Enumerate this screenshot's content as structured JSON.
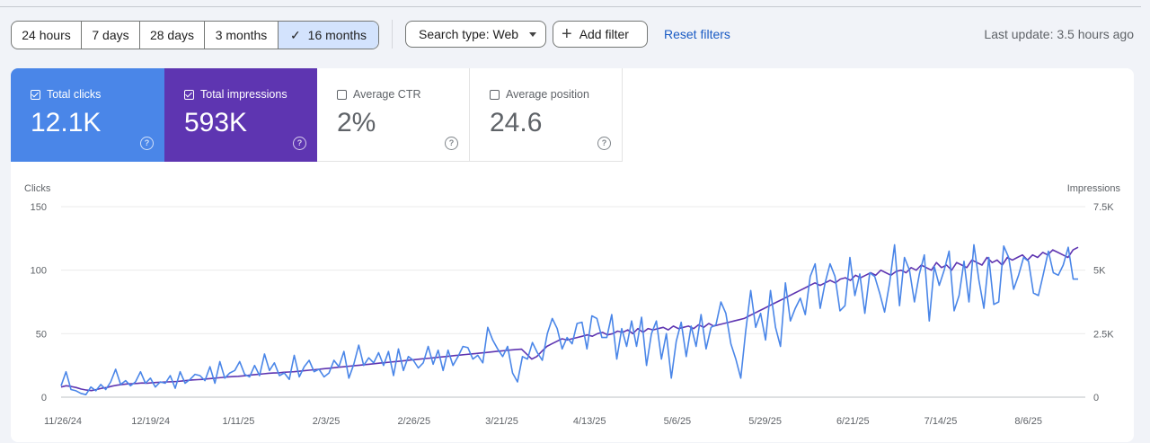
{
  "filters": {
    "date_ranges": [
      "24 hours",
      "7 days",
      "28 days",
      "3 months",
      "16 months"
    ],
    "selected_range": "16 months",
    "search_type": "Search type: Web",
    "add_filter": "Add filter",
    "reset": "Reset filters",
    "last_update": "Last update: 3.5 hours ago"
  },
  "metrics": {
    "clicks": {
      "label": "Total clicks",
      "value": "12.1K",
      "checked": true
    },
    "impressions": {
      "label": "Total impressions",
      "value": "593K",
      "checked": true
    },
    "ctr": {
      "label": "Average CTR",
      "value": "2%",
      "checked": false
    },
    "position": {
      "label": "Average position",
      "value": "24.6",
      "checked": false
    }
  },
  "colors": {
    "clicks": "#4a86e8",
    "impressions": "#5e35b1"
  },
  "chart_data": {
    "type": "line",
    "left_axis_title": "Clicks",
    "right_axis_title": "Impressions",
    "left_ticks": [
      "150",
      "100",
      "50",
      "0"
    ],
    "right_ticks": [
      "7.5K",
      "5K",
      "2.5K",
      "0"
    ],
    "ylim_left": [
      0,
      150
    ],
    "ylim_right": [
      0,
      7500
    ],
    "x_labels": [
      "11/26/24",
      "12/19/24",
      "1/11/25",
      "2/3/25",
      "2/26/25",
      "3/21/25",
      "4/13/25",
      "5/6/25",
      "5/29/25",
      "6/21/25",
      "7/14/25",
      "8/6/25"
    ],
    "series": [
      {
        "name": "Clicks",
        "values": [
          9,
          20,
          6,
          5,
          3,
          2,
          8,
          5,
          10,
          6,
          12,
          22,
          10,
          13,
          9,
          12,
          20,
          11,
          15,
          8,
          12,
          11,
          17,
          7,
          20,
          11,
          14,
          18,
          17,
          13,
          24,
          11,
          28,
          15,
          19,
          21,
          28,
          18,
          16,
          25,
          17,
          34,
          21,
          27,
          17,
          19,
          14,
          33,
          16,
          24,
          29,
          20,
          22,
          16,
          19,
          29,
          24,
          36,
          15,
          26,
          41,
          25,
          31,
          27,
          35,
          25,
          36,
          17,
          38,
          21,
          32,
          29,
          23,
          27,
          40,
          26,
          37,
          21,
          37,
          25,
          32,
          40,
          39,
          30,
          33,
          27,
          55,
          45,
          38,
          32,
          40,
          19,
          12,
          32,
          30,
          43,
          35,
          29,
          50,
          62,
          54,
          38,
          47,
          42,
          58,
          59,
          38,
          64,
          62,
          47,
          47,
          65,
          30,
          54,
          40,
          60,
          40,
          63,
          25,
          50,
          60,
          30,
          50,
          15,
          44,
          59,
          32,
          56,
          40,
          65,
          38,
          55,
          57,
          75,
          66,
          42,
          30,
          15,
          52,
          84,
          55,
          66,
          45,
          84,
          55,
          40,
          90,
          60,
          70,
          78,
          65,
          95,
          105,
          70,
          90,
          105,
          95,
          68,
          72,
          110,
          80,
          97,
          66,
          98,
          95,
          82,
          67,
          90,
          120,
          72,
          110,
          100,
          75,
          97,
          112,
          60,
          103,
          88,
          100,
          115,
          68,
          80,
          107,
          75,
          120,
          92,
          70,
          110,
          73,
          75,
          119,
          110,
          85,
          96,
          110,
          107,
          82,
          80,
          97,
          115,
          98,
          96,
          104,
          118,
          93,
          93
        ]
      },
      {
        "name": "Impressions",
        "values": [
          400,
          450,
          420,
          380,
          320,
          280,
          260,
          300,
          350,
          380,
          430,
          470,
          500,
          520,
          530,
          540,
          560,
          550,
          570,
          580,
          590,
          600,
          610,
          620,
          640,
          660,
          680,
          690,
          700,
          720,
          740,
          760,
          780,
          800,
          810,
          820,
          840,
          860,
          880,
          900,
          920,
          940,
          950,
          960,
          980,
          990,
          1000,
          1020,
          1040,
          1060,
          1080,
          1100,
          1120,
          1140,
          1160,
          1180,
          1200,
          1220,
          1240,
          1260,
          1280,
          1300,
          1320,
          1340,
          1360,
          1380,
          1400,
          1420,
          1440,
          1460,
          1480,
          1500,
          1520,
          1540,
          1560,
          1580,
          1600,
          1620,
          1640,
          1660,
          1680,
          1700,
          1720,
          1740,
          1760,
          1780,
          1800,
          1820,
          1840,
          1860,
          1880,
          1890,
          1700,
          1500,
          1600,
          1800,
          2000,
          2100,
          2200,
          2300,
          2250,
          2300,
          2350,
          2400,
          2450,
          2400,
          2500,
          2550,
          2450,
          2500,
          2600,
          2550,
          2650,
          2500,
          2700,
          2550,
          2700,
          2650,
          2700,
          2750,
          2650,
          2800,
          2700,
          2750,
          2800,
          2700,
          2850,
          2750,
          2900,
          2800,
          2850,
          2900,
          2950,
          3000,
          3050,
          3100,
          3200,
          3300,
          3400,
          3500,
          3600,
          3700,
          3800,
          3900,
          4000,
          4100,
          4200,
          4300,
          4400,
          4500,
          4400,
          4500,
          4600,
          4500,
          4650,
          4700,
          4600,
          4800,
          4700,
          4800,
          4900,
          4800,
          5000,
          4900,
          4800,
          4950,
          5000,
          4900,
          5100,
          5000,
          5200,
          5100,
          5000,
          5300,
          5100,
          5200,
          5000,
          5300,
          5200,
          5100,
          5400,
          5300,
          5200,
          5500,
          5300,
          5400,
          5200,
          5500,
          5400,
          5500,
          5600,
          5400,
          5600,
          5500,
          5700,
          5600,
          5800,
          5700,
          5600,
          5500,
          5800,
          5900
        ]
      }
    ]
  }
}
